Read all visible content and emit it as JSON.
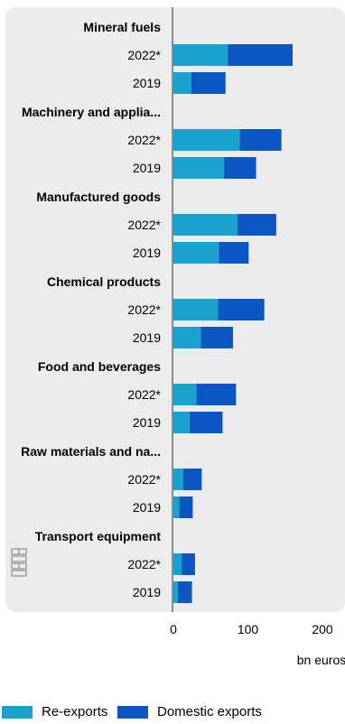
{
  "chart_data": {
    "type": "bar",
    "orientation": "horizontal",
    "stacked": true,
    "groups": [
      {
        "category": "Mineral fuels",
        "rows": [
          {
            "label": "2022*",
            "re_exports": 73,
            "domestic_exports": 87
          },
          {
            "label": "2019",
            "re_exports": 24,
            "domestic_exports": 46
          }
        ]
      },
      {
        "category": "Machinery and applia...",
        "rows": [
          {
            "label": "2022*",
            "re_exports": 89,
            "domestic_exports": 56
          },
          {
            "label": "2019",
            "re_exports": 68,
            "domestic_exports": 43
          }
        ]
      },
      {
        "category": "Manufactured goods",
        "rows": [
          {
            "label": "2022*",
            "re_exports": 86,
            "domestic_exports": 52
          },
          {
            "label": "2019",
            "re_exports": 61,
            "domestic_exports": 40
          }
        ]
      },
      {
        "category": "Chemical products",
        "rows": [
          {
            "label": "2022*",
            "re_exports": 60,
            "domestic_exports": 62
          },
          {
            "label": "2019",
            "re_exports": 37,
            "domestic_exports": 43
          }
        ]
      },
      {
        "category": "Food and beverages",
        "rows": [
          {
            "label": "2022*",
            "re_exports": 31,
            "domestic_exports": 53
          },
          {
            "label": "2019",
            "re_exports": 22,
            "domestic_exports": 44
          }
        ]
      },
      {
        "category": "Raw materials and na...",
        "rows": [
          {
            "label": "2022*",
            "re_exports": 13,
            "domestic_exports": 25
          },
          {
            "label": "2019",
            "re_exports": 8,
            "domestic_exports": 18
          }
        ]
      },
      {
        "category": "Transport equipment",
        "rows": [
          {
            "label": "2022*",
            "re_exports": 11,
            "domestic_exports": 18
          },
          {
            "label": "2019",
            "re_exports": 6,
            "domestic_exports": 19
          }
        ]
      }
    ],
    "series": [
      {
        "name": "Re-exports",
        "color": "#18a3cf"
      },
      {
        "name": "Domestic exports",
        "color": "#0b56c2"
      }
    ],
    "x_ticks": [
      "0",
      "100",
      "200"
    ],
    "xlabel": "bn euros",
    "xlim": [
      0,
      200
    ],
    "grid": false,
    "legend_position": "bottom"
  },
  "colors": {
    "panel_background": "#ececec",
    "axis_line": "#666666"
  },
  "icons": {
    "logo": "cbs-logo-icon"
  }
}
